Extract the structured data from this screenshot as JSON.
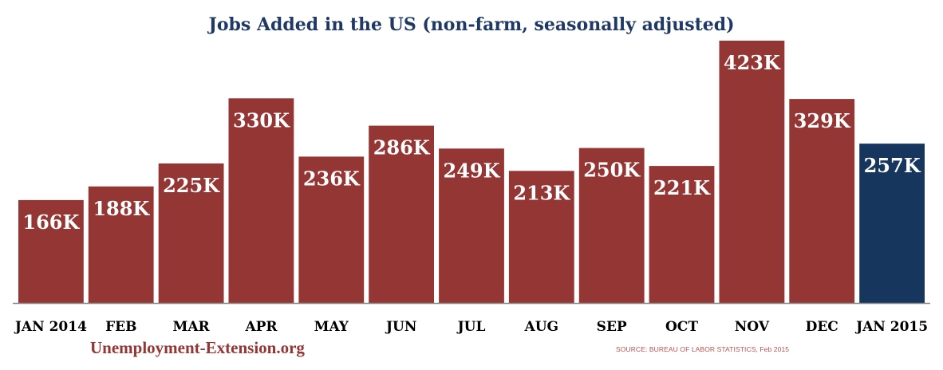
{
  "colors": {
    "bar": "#943634",
    "highlight_bar": "#17365D",
    "title": "#1F3864",
    "label": "#ffffff",
    "axis_text": "#000000",
    "brand_text": "#943634",
    "source_text": "#C0504D",
    "axis_line": "#8C8C8C"
  },
  "footer": {
    "brand": "Unemployment-Extension.org",
    "source": "SOURCE: BUREAU OF LABOR STATISTICS, Feb 2015"
  },
  "chart_data": {
    "type": "bar",
    "title": "Jobs Added in the US (non-farm, seasonally adjusted)",
    "xlabel": "",
    "ylabel": "",
    "categories": [
      "JAN 2014",
      "FEB",
      "MAR",
      "APR",
      "MAY",
      "JUN",
      "JUL",
      "AUG",
      "SEP",
      "OCT",
      "NOV",
      "DEC",
      "JAN 2015"
    ],
    "values": [
      166,
      188,
      225,
      330,
      236,
      286,
      249,
      213,
      250,
      221,
      423,
      329,
      257
    ],
    "data_labels": [
      "166K",
      "188K",
      "225K",
      "330K",
      "236K",
      "286K",
      "249K",
      "213K",
      "250K",
      "221K",
      "423K",
      "329K",
      "257K"
    ],
    "highlight_index": 12,
    "ylim": [
      0,
      423
    ],
    "grid": false,
    "legend": "none"
  }
}
